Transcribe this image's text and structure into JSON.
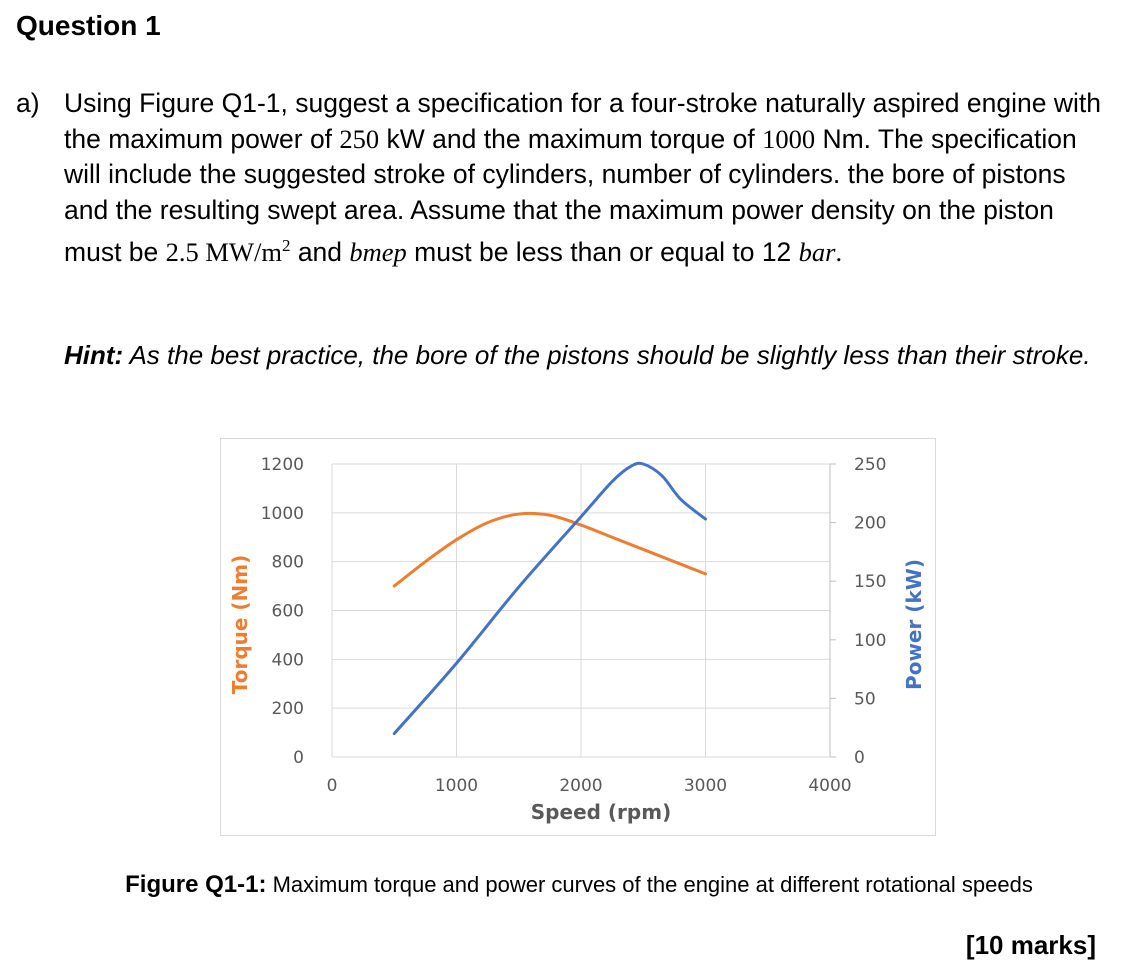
{
  "question": {
    "title": "Question 1",
    "part_label": "a)",
    "text_1": "Using Figure Q1-1, suggest a specification for a four-stroke naturally aspired engine with the maximum power of ",
    "power_value": "250",
    "text_2": " kW and the maximum torque of ",
    "torque_value": "1000",
    "text_3": " Nm. The specification will include the suggested stroke of cylinders, number of cylinders. the bore of pistons and the resulting swept area. Assume that the maximum power density on the piston must be ",
    "density_value": "2.5 MW/m",
    "density_exp": "2",
    "text_4": " and ",
    "bmep_symbol": "bmep",
    "text_5": " must be less than or equal to 12 ",
    "bar_unit": "bar",
    "text_6": ".",
    "hint_label": "Hint:",
    "hint_text": " As the best practice, the bore of the pistons should be slightly less than their stroke.",
    "caption_label": "Figure Q1-1:",
    "caption_text": " Maximum torque and power curves of the engine at different rotational speeds",
    "marks": "[10 marks]"
  },
  "colors": {
    "torque": "#ed7d31",
    "power": "#4472c4",
    "grid": "#d9d9d9",
    "axis_text": "#595959"
  },
  "chart_data": {
    "type": "line",
    "xlabel": "Speed (rpm)",
    "ylabel_left": "Torque (Nm)",
    "ylabel_right": "Power (kW)",
    "xlim": [
      0,
      4000
    ],
    "x_ticks": [
      "0",
      "1000",
      "2000",
      "3000",
      "4000"
    ],
    "y_left_lim": [
      0,
      1200
    ],
    "y_left_ticks": [
      "0",
      "200",
      "400",
      "600",
      "800",
      "1000",
      "1200"
    ],
    "y_right_lim": [
      0,
      250
    ],
    "y_right_ticks": [
      "0",
      "50",
      "100",
      "150",
      "200",
      "250"
    ],
    "grid": true,
    "series": [
      {
        "axis": "left",
        "color": "#ed7d31",
        "x": [
          500,
          750,
          1000,
          1250,
          1500,
          1750,
          2000,
          2250,
          2500,
          2750,
          3000
        ],
        "values": [
          700,
          800,
          890,
          960,
          995,
          990,
          950,
          900,
          850,
          800,
          750
        ]
      },
      {
        "axis": "right",
        "color": "#4472c4",
        "x": [
          500,
          1000,
          1500,
          2000,
          2250,
          2400,
          2500,
          2650,
          2800,
          3000
        ],
        "values": [
          20,
          80,
          145,
          205,
          235,
          248,
          250,
          240,
          220,
          203
        ]
      }
    ]
  }
}
